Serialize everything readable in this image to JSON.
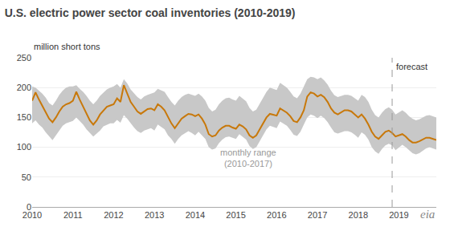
{
  "chart_data": {
    "type": "line",
    "title": "U.S. electric power sector coal inventories (2010-2019)",
    "ylabel": "million short tons",
    "x": [
      2010,
      2010.0833333,
      2010.1666667,
      2010.25,
      2010.3333333,
      2010.4166667,
      2010.5,
      2010.5833333,
      2010.6666667,
      2010.75,
      2010.8333333,
      2010.9166667,
      2011,
      2011.0833333,
      2011.1666667,
      2011.25,
      2011.3333333,
      2011.4166667,
      2011.5,
      2011.5833333,
      2011.6666667,
      2011.75,
      2011.8333333,
      2011.9166667,
      2012,
      2012.0833333,
      2012.1666667,
      2012.25,
      2012.3333333,
      2012.4166667,
      2012.5,
      2012.5833333,
      2012.6666667,
      2012.75,
      2012.8333333,
      2012.9166667,
      2013,
      2013.0833333,
      2013.1666667,
      2013.25,
      2013.3333333,
      2013.4166667,
      2013.5,
      2013.5833333,
      2013.6666667,
      2013.75,
      2013.8333333,
      2013.9166667,
      2014,
      2014.0833333,
      2014.1666667,
      2014.25,
      2014.3333333,
      2014.4166667,
      2014.5,
      2014.5833333,
      2014.6666667,
      2014.75,
      2014.8333333,
      2014.9166667,
      2015,
      2015.0833333,
      2015.1666667,
      2015.25,
      2015.3333333,
      2015.4166667,
      2015.5,
      2015.5833333,
      2015.6666667,
      2015.75,
      2015.8333333,
      2015.9166667,
      2016,
      2016.0833333,
      2016.1666667,
      2016.25,
      2016.3333333,
      2016.4166667,
      2016.5,
      2016.5833333,
      2016.6666667,
      2016.75,
      2016.8333333,
      2016.9166667,
      2017,
      2017.0833333,
      2017.1666667,
      2017.25,
      2017.3333333,
      2017.4166667,
      2017.5,
      2017.5833333,
      2017.6666667,
      2017.75,
      2017.8333333,
      2017.9166667,
      2018,
      2018.0833333,
      2018.1666667,
      2018.25,
      2018.3333333,
      2018.4166667,
      2018.5,
      2018.5833333,
      2018.6666667,
      2018.75,
      2018.8333333,
      2018.9166667,
      2019,
      2019.0833333,
      2019.1666667,
      2019.25,
      2019.3333333,
      2019.4166667,
      2019.5,
      2019.5833333,
      2019.6666667,
      2019.75,
      2019.8333333,
      2019.9166667
    ],
    "series": [
      {
        "type": "band",
        "color": "#c8c8c8",
        "upper": [
          202,
          200,
          195,
          190,
          183,
          174,
          170,
          178,
          188,
          195,
          200,
          202,
          202,
          204,
          198,
          193,
          186,
          178,
          172,
          178,
          186,
          192,
          197,
          200,
          202,
          206,
          200,
          214,
          207,
          197,
          190,
          184,
          180,
          185,
          188,
          190,
          192,
          198,
          196,
          193,
          184,
          176,
          170,
          178,
          184,
          188,
          190,
          188,
          186,
          190,
          185,
          178,
          166,
          160,
          163,
          172,
          178,
          182,
          183,
          180,
          178,
          186,
          182,
          177,
          166,
          160,
          163,
          173,
          182,
          193,
          200,
          198,
          196,
          208,
          204,
          200,
          193,
          185,
          182,
          190,
          202,
          214,
          218,
          217,
          214,
          217,
          212,
          205,
          195,
          187,
          184,
          186,
          188,
          188,
          186,
          182,
          178,
          188,
          184,
          176,
          163,
          154,
          150,
          158,
          164,
          167,
          163,
          155,
          158,
          162,
          158,
          152,
          148,
          145,
          147,
          150,
          153,
          154,
          152,
          150
        ],
        "lower": [
          140,
          145,
          138,
          133,
          125,
          118,
          112,
          120,
          128,
          136,
          140,
          142,
          144,
          150,
          144,
          138,
          130,
          124,
          118,
          123,
          128,
          135,
          138,
          140,
          140,
          146,
          141,
          154,
          148,
          140,
          133,
          127,
          124,
          128,
          130,
          132,
          128,
          138,
          134,
          130,
          120,
          114,
          106,
          114,
          120,
          124,
          127,
          124,
          120,
          126,
          120,
          114,
          100,
          96,
          98,
          107,
          113,
          117,
          118,
          116,
          114,
          122,
          118,
          113,
          102,
          97,
          100,
          110,
          120,
          130,
          136,
          134,
          132,
          143,
          140,
          136,
          129,
          121,
          119,
          126,
          138,
          150,
          155,
          153,
          149,
          153,
          149,
          142,
          133,
          125,
          123,
          125,
          127,
          127,
          125,
          121,
          116,
          125,
          121,
          113,
          100,
          93,
          89,
          97,
          103,
          106,
          103,
          95,
          100,
          104,
          100,
          95,
          90,
          88,
          90,
          94,
          98,
          100,
          98,
          96
        ]
      },
      {
        "type": "line",
        "color": "#c8780a",
        "values": [
          178,
          192,
          180,
          170,
          160,
          148,
          142,
          150,
          160,
          168,
          172,
          174,
          178,
          193,
          180,
          168,
          158,
          145,
          138,
          145,
          155,
          162,
          168,
          170,
          172,
          182,
          176,
          204,
          190,
          176,
          168,
          160,
          156,
          160,
          164,
          165,
          162,
          172,
          168,
          162,
          150,
          140,
          132,
          140,
          148,
          152,
          156,
          155,
          152,
          155,
          148,
          138,
          122,
          118,
          120,
          128,
          133,
          136,
          136,
          133,
          131,
          138,
          135,
          130,
          120,
          116,
          120,
          130,
          140,
          150,
          156,
          154,
          153,
          165,
          162,
          158,
          152,
          144,
          142,
          150,
          162,
          185,
          192,
          190,
          185,
          188,
          184,
          176,
          165,
          158,
          155,
          158,
          162,
          162,
          160,
          155,
          150,
          155,
          148,
          138,
          126,
          118,
          114,
          120,
          126,
          128,
          124,
          118,
          120,
          122,
          118,
          112,
          108,
          108,
          110,
          113,
          116,
          116,
          114,
          112
        ]
      }
    ],
    "annotations": [
      {
        "text": "forecast",
        "x": 2018.833,
        "y": 246,
        "vline": true
      },
      {
        "text": "monthly range\n(2010-2017)",
        "x": 2015.3,
        "y": 82
      },
      {
        "text": "eia"
      }
    ],
    "xlim": [
      2010.0,
      2019.917
    ],
    "xticks": [
      2010,
      2011,
      2012,
      2013,
      2014,
      2015,
      2016,
      2017,
      2018,
      2019
    ],
    "ylim": [
      0,
      250
    ],
    "yticks": [
      0,
      50,
      100,
      150,
      200,
      250
    ],
    "grid": "y"
  }
}
